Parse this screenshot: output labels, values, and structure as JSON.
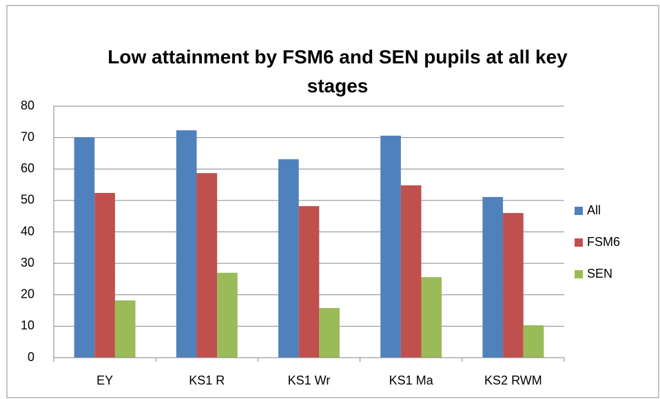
{
  "chart_data": {
    "type": "bar",
    "title": "Low attainment by FSM6 and SEN pupils at all key stages",
    "categories": [
      "EY",
      "KS1 R",
      "KS1 Wr",
      "KS1 Ma",
      "KS2 RWM"
    ],
    "series": [
      {
        "name": "All",
        "color": "#4f81bd",
        "values": [
          70.1,
          72.3,
          63.1,
          70.6,
          51.1
        ]
      },
      {
        "name": "FSM6",
        "color": "#c0504d",
        "values": [
          52.4,
          58.7,
          48.2,
          54.8,
          46
        ]
      },
      {
        "name": "SEN",
        "color": "#9bbb59",
        "values": [
          18.2,
          27,
          15.8,
          25.6,
          10.3
        ]
      }
    ],
    "ylim": [
      0,
      80
    ],
    "yticks": [
      0,
      10,
      20,
      30,
      40,
      50,
      60,
      70,
      80
    ],
    "grid": true,
    "legend": "right"
  }
}
